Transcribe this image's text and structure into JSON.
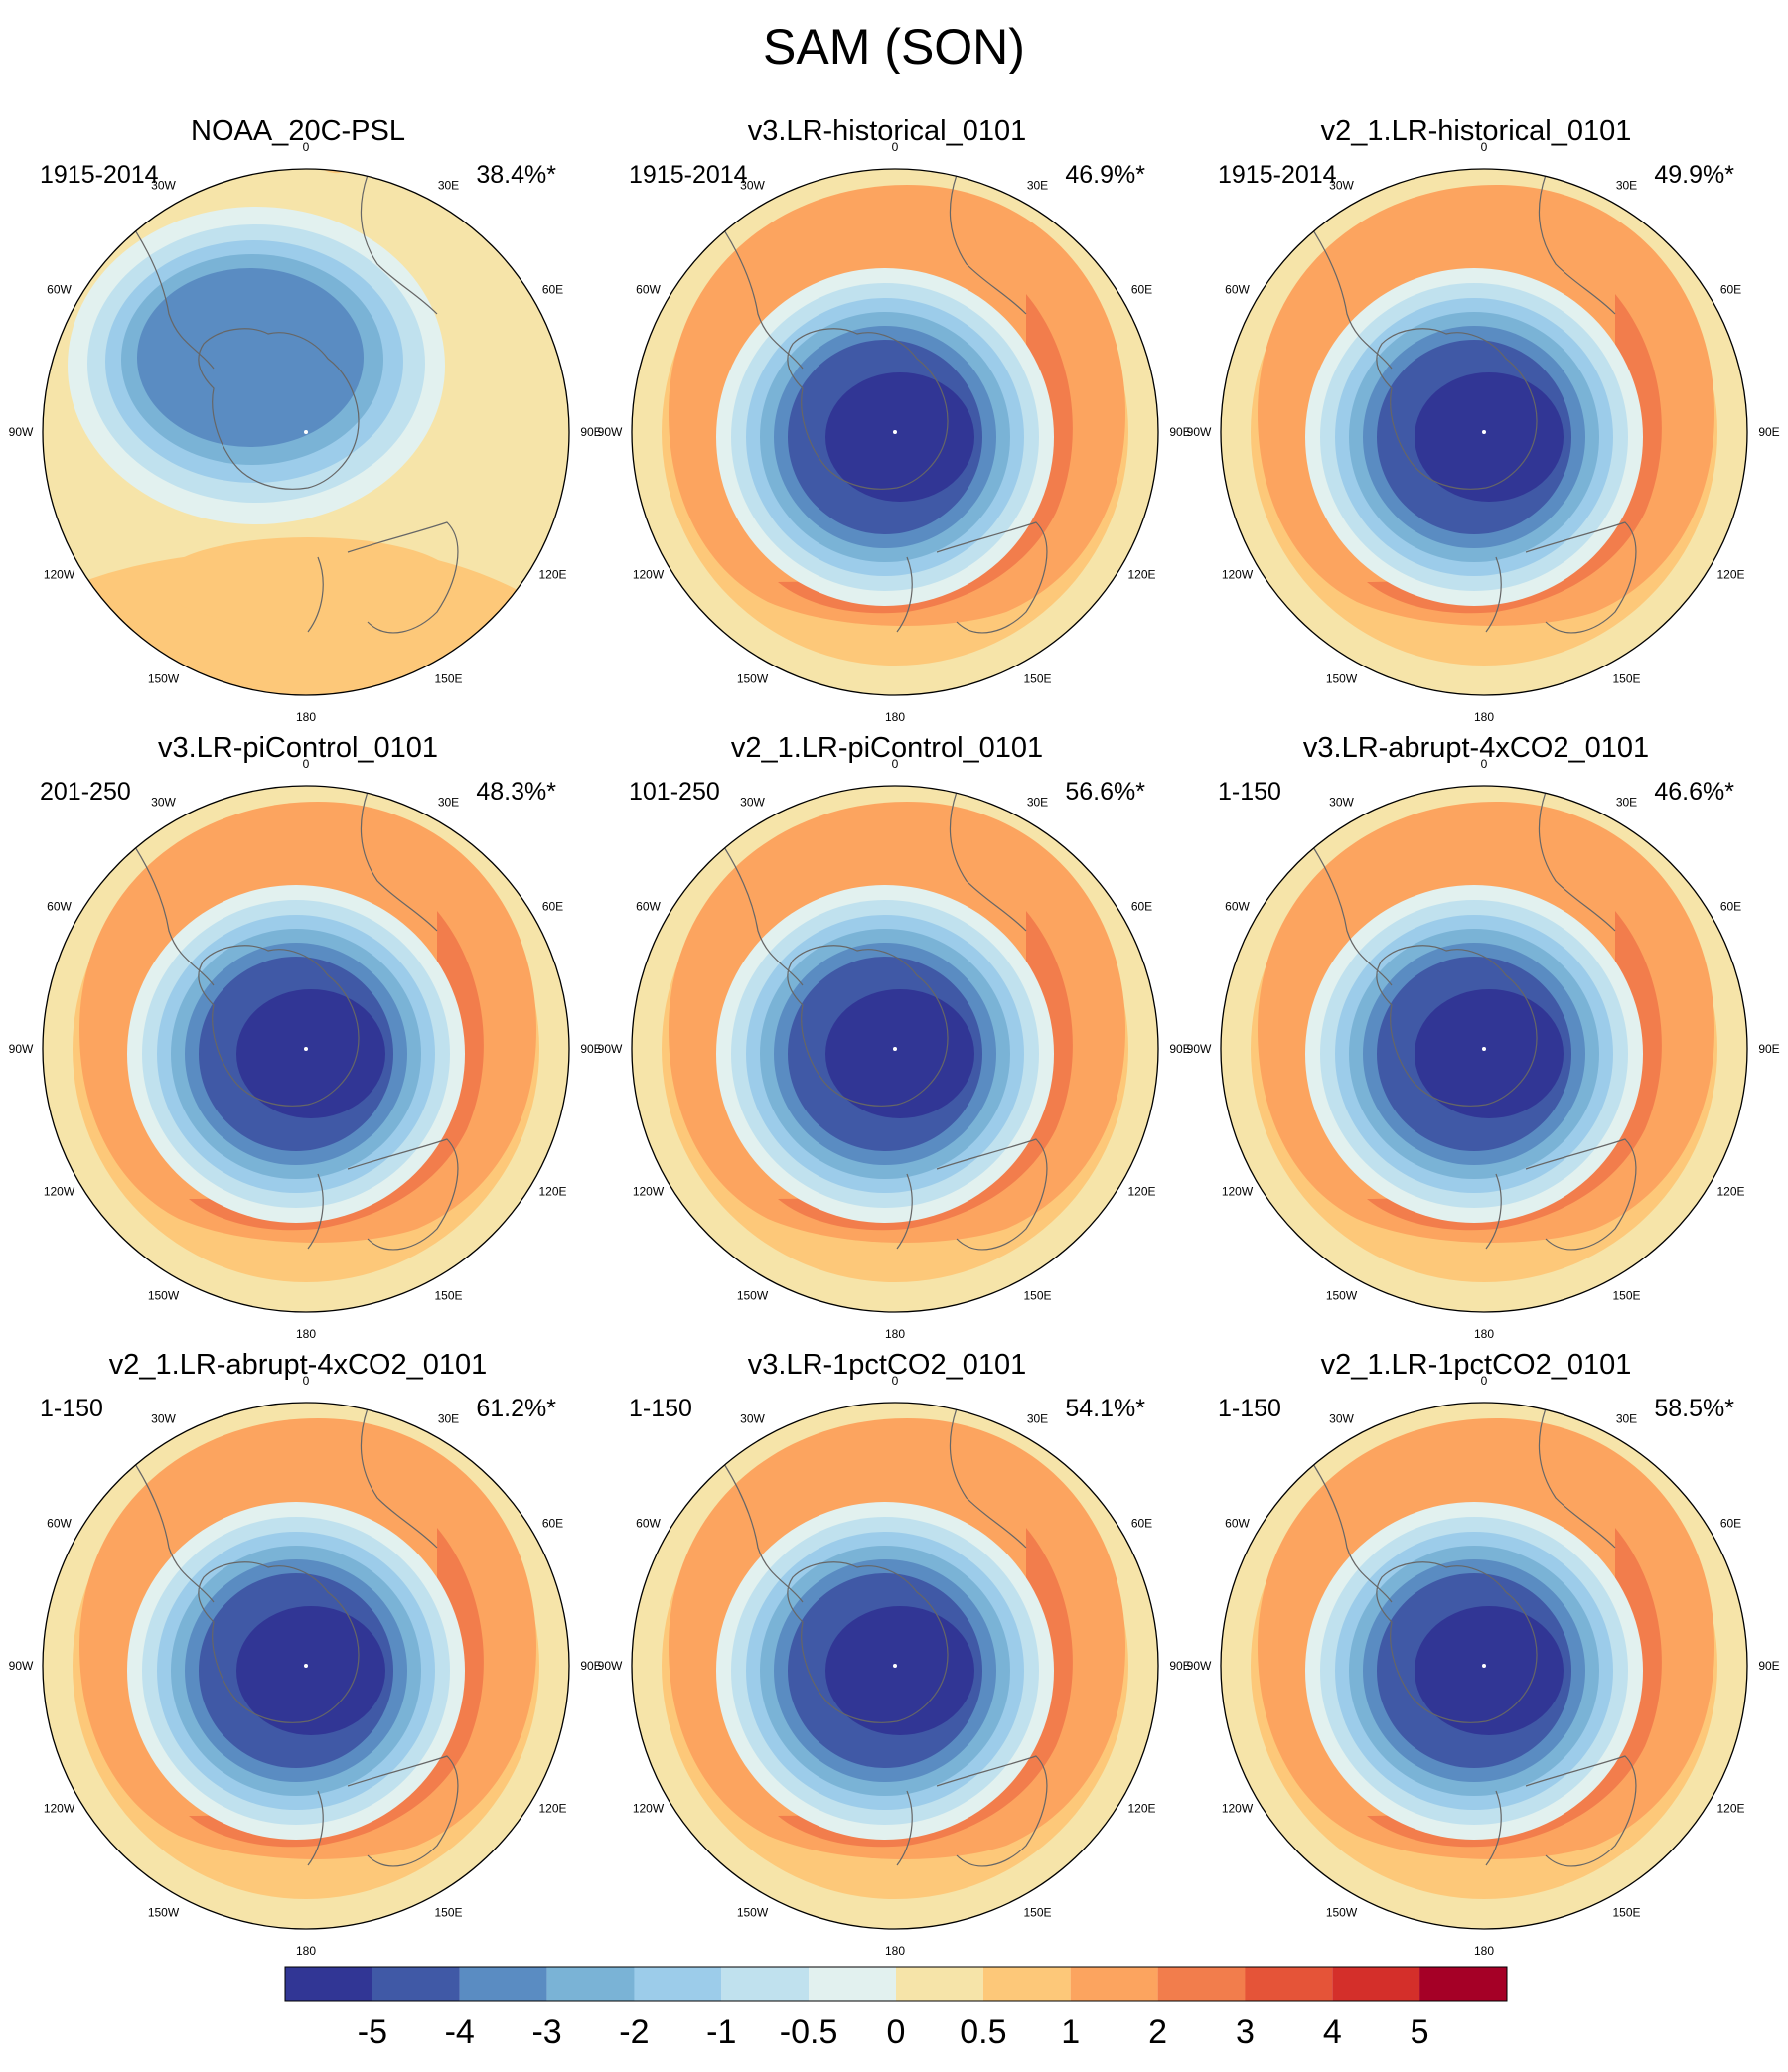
{
  "title": "SAM (SON)",
  "panels": [
    {
      "name": "NOAA_20C-PSL",
      "period": "1915-2014",
      "variance": "38.4%*",
      "style": "obs"
    },
    {
      "name": "v3.LR-historical_0101",
      "period": "1915-2014",
      "variance": "46.9%*",
      "style": "model"
    },
    {
      "name": "v2_1.LR-historical_0101",
      "period": "1915-2014",
      "variance": "49.9%*",
      "style": "model"
    },
    {
      "name": "v3.LR-piControl_0101",
      "period": "201-250",
      "variance": "48.3%*",
      "style": "model"
    },
    {
      "name": "v2_1.LR-piControl_0101",
      "period": "101-250",
      "variance": "56.6%*",
      "style": "model"
    },
    {
      "name": "v3.LR-abrupt-4xCO2_0101",
      "period": "1-150",
      "variance": "46.6%*",
      "style": "model"
    },
    {
      "name": "v2_1.LR-abrupt-4xCO2_0101",
      "period": "1-150",
      "variance": "61.2%*",
      "style": "model"
    },
    {
      "name": "v3.LR-1pctCO2_0101",
      "period": "1-150",
      "variance": "54.1%*",
      "style": "model"
    },
    {
      "name": "v2_1.LR-1pctCO2_0101",
      "period": "1-150",
      "variance": "58.5%*",
      "style": "model"
    }
  ],
  "lon_labels": [
    "0",
    "30E",
    "60E",
    "90E",
    "120E",
    "150E",
    "180",
    "150W",
    "120W",
    "90W",
    "60W",
    "30W"
  ],
  "colorbar": {
    "colors": [
      "#313695",
      "#4059a6",
      "#5a8cc2",
      "#7ab3d6",
      "#9cccea",
      "#c0e1ee",
      "#e2f1ef",
      "#f6e4a9",
      "#fdc879",
      "#fca45f",
      "#f27d4c",
      "#e55438",
      "#d42f2a",
      "#a50026"
    ],
    "levels": [
      "-5",
      "-4",
      "-3",
      "-2",
      "-1",
      "-0.5",
      "0",
      "0.5",
      "1",
      "2",
      "3",
      "4",
      "5"
    ]
  }
}
